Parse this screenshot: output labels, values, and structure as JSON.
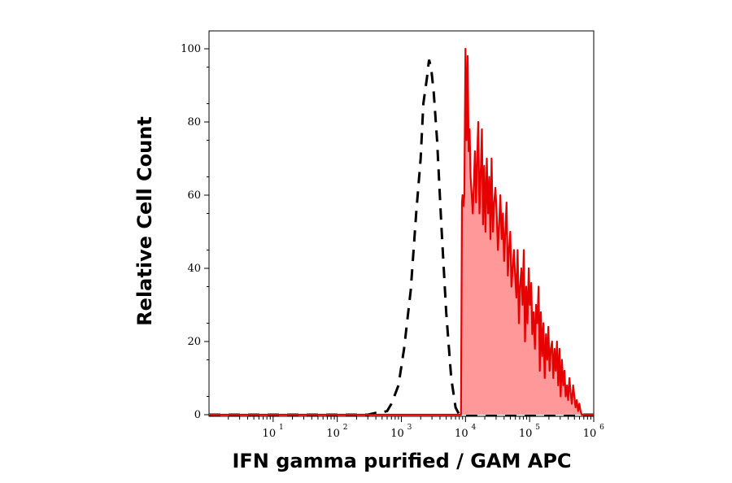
{
  "chart_data": {
    "type": "area",
    "xlabel": "IFN gamma purified / GAM APC",
    "ylabel": "Relative Cell Count",
    "x_scale": "log",
    "xlim": [
      1,
      1000000
    ],
    "ylim": [
      0,
      100
    ],
    "x_ticks": [
      {
        "base": "10",
        "exp": "1"
      },
      {
        "base": "10",
        "exp": "2"
      },
      {
        "base": "10",
        "exp": "3"
      },
      {
        "base": "10",
        "exp": "4"
      },
      {
        "base": "10",
        "exp": "5"
      },
      {
        "base": "10",
        "exp": "6"
      }
    ],
    "y_ticks": [
      "0",
      "20",
      "40",
      "60",
      "80",
      "100"
    ],
    "grid": false,
    "series": [
      {
        "style": "dashed",
        "color": "#000000",
        "x": [
          1,
          300,
          400,
          500,
          600,
          700,
          900,
          1100,
          1400,
          1700,
          2000,
          2200,
          2500,
          2700,
          2900,
          3200,
          3600,
          4200,
          5000,
          6000,
          7000,
          8000,
          1000000
        ],
        "y": [
          0,
          0,
          0.5,
          0.6,
          1,
          3,
          8,
          18,
          34,
          55,
          70,
          85,
          92,
          97,
          95,
          88,
          75,
          52,
          28,
          10,
          2,
          0,
          0
        ]
      },
      {
        "style": "filled",
        "color": "#e60000",
        "fill": "#ff9999",
        "x": [
          1,
          8500,
          8800,
          9000,
          9300,
          9600,
          10000,
          10400,
          10800,
          11200,
          11600,
          12000,
          12500,
          13000,
          13500,
          14000,
          14600,
          15200,
          15800,
          16500,
          17200,
          18000,
          18800,
          19600,
          20500,
          21500,
          22500,
          23500,
          24500,
          25500,
          26700,
          28000,
          29300,
          30700,
          32000,
          33500,
          35000,
          36600,
          38300,
          40000,
          41800,
          43700,
          45700,
          47700,
          49900,
          52100,
          54500,
          57000,
          59500,
          62200,
          65000,
          68000,
          71000,
          74300,
          77600,
          81100,
          84800,
          88600,
          92600,
          96800,
          101000,
          106000,
          110000,
          115000,
          121000,
          126000,
          132000,
          138000,
          144000,
          150000,
          157000,
          164000,
          172000,
          180000,
          188000,
          196000,
          205000,
          214000,
          224000,
          234000,
          245000,
          256000,
          267000,
          279000,
          292000,
          305000,
          319000,
          334000,
          349000,
          365000,
          382000,
          399000,
          417000,
          436000,
          456000,
          477000,
          499000,
          521000,
          545000,
          570000,
          596000,
          623000,
          651000,
          1000000
        ],
        "y": [
          0,
          0,
          58,
          60,
          57,
          60,
          100,
          75,
          98,
          72,
          78,
          65,
          60,
          55,
          63,
          72,
          58,
          70,
          80,
          55,
          65,
          78,
          52,
          68,
          50,
          70,
          55,
          65,
          48,
          70,
          50,
          58,
          62,
          55,
          45,
          52,
          60,
          48,
          55,
          42,
          50,
          58,
          38,
          45,
          50,
          35,
          40,
          45,
          38,
          32,
          45,
          25,
          35,
          40,
          30,
          45,
          20,
          35,
          25,
          40,
          30,
          36,
          22,
          28,
          18,
          30,
          25,
          35,
          12,
          28,
          16,
          25,
          10,
          22,
          15,
          24,
          12,
          18,
          20,
          10,
          18,
          12,
          20,
          8,
          18,
          5,
          15,
          8,
          12,
          5,
          8,
          4,
          10,
          6,
          3,
          8,
          5,
          2,
          4,
          1,
          3,
          1,
          0,
          0
        ]
      }
    ]
  }
}
